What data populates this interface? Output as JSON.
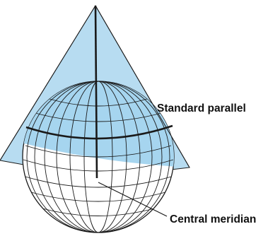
{
  "labels": {
    "standard_parallel": "Standard parallel",
    "central_meridian": "Central meridian"
  },
  "colors": {
    "cone_fill": "#b7dcf1",
    "cap_fill": "#a6d5ef",
    "outline": "#1a1a1a",
    "background": "#ffffff"
  }
}
